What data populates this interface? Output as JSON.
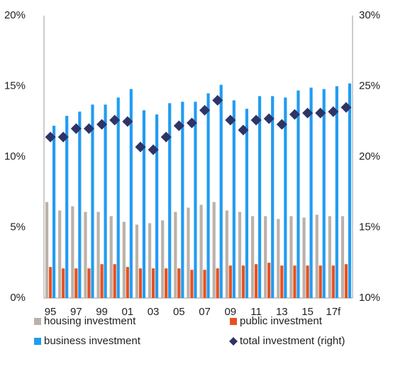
{
  "chart_data": {
    "type": "bar",
    "categories": [
      "95",
      null,
      "97",
      null,
      "99",
      null,
      "01",
      null,
      "03",
      null,
      "05",
      null,
      "07",
      null,
      "09",
      null,
      "11",
      null,
      "13",
      null,
      "15",
      null,
      "17f",
      null
    ],
    "series": [
      {
        "name": "housing investment",
        "type": "bar",
        "color": "#bcb1a8",
        "values": [
          6.8,
          6.2,
          6.5,
          6.1,
          6.1,
          5.8,
          5.4,
          5.2,
          5.3,
          5.5,
          6.1,
          6.4,
          6.6,
          6.8,
          6.2,
          6.1,
          5.8,
          5.8,
          5.6,
          5.8,
          5.7,
          5.9,
          5.8,
          5.8
        ]
      },
      {
        "name": "public investment",
        "type": "bar",
        "color": "#e8511f",
        "values": [
          2.2,
          2.1,
          2.1,
          2.1,
          2.4,
          2.4,
          2.2,
          2.1,
          2.1,
          2.1,
          2.1,
          2.0,
          2.0,
          2.1,
          2.3,
          2.3,
          2.4,
          2.5,
          2.3,
          2.3,
          2.3,
          2.3,
          2.3,
          2.4
        ]
      },
      {
        "name": "business investment",
        "type": "bar",
        "color": "#229cf2",
        "values": [
          12.2,
          12.9,
          13.2,
          13.7,
          13.7,
          14.2,
          14.8,
          13.3,
          13.0,
          13.8,
          13.9,
          13.9,
          14.5,
          15.1,
          14.0,
          13.4,
          14.3,
          14.3,
          14.2,
          14.7,
          14.9,
          14.8,
          15.0,
          15.2
        ]
      },
      {
        "name": "total investment (right)",
        "type": "scatter",
        "marker": "diamond",
        "axis": "y2",
        "color": "#2e3465",
        "values": [
          21.4,
          21.4,
          22.0,
          22.0,
          22.3,
          22.6,
          22.5,
          20.7,
          20.5,
          21.4,
          22.2,
          22.4,
          23.3,
          24.0,
          22.6,
          21.9,
          22.6,
          22.7,
          22.3,
          23.0,
          23.1,
          23.1,
          23.2,
          23.5
        ]
      }
    ],
    "ylim": [
      0,
      20
    ],
    "yticks": [
      {
        "value": 0,
        "label": "0%"
      },
      {
        "value": 5,
        "label": "5%"
      },
      {
        "value": 10,
        "label": "10%"
      },
      {
        "value": 15,
        "label": "15%"
      },
      {
        "value": 20,
        "label": "20%"
      }
    ],
    "y2lim": [
      10,
      30
    ],
    "y2ticks": [
      {
        "value": 10,
        "label": "10%"
      },
      {
        "value": 15,
        "label": "15%"
      },
      {
        "value": 20,
        "label": "20%"
      },
      {
        "value": 25,
        "label": "25%"
      },
      {
        "value": 30,
        "label": "30%"
      }
    ],
    "grid": false,
    "legend": "bottom"
  }
}
